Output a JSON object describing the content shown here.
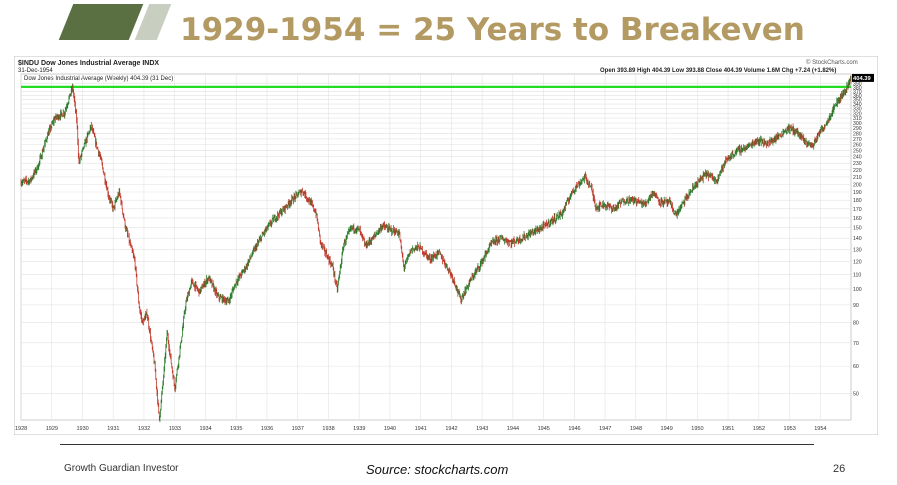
{
  "slide": {
    "title": "1929-1954 = 25 Years to Breakeven",
    "footer_left": "Growth Guardian Investor",
    "source": "Source: stockcharts.com",
    "page_number": "26"
  },
  "chart_header": {
    "symbol_line": "$INDU Dow Jones Industrial Average INDX",
    "date": "31-Dec-1954",
    "ohlc": "Open 393.89  High 404.39  Low 393.88  Close 404.39  Volume 1.6M  Chg +7.24 (+1.82%)",
    "watermark": "© StockCharts.com",
    "legend": "Dow Jones Industrial Average (Weekly) 404.39 (31 Dec)",
    "last_value_label": "404.39"
  },
  "colors": {
    "up_bar": "#2a7a2a",
    "down_bar": "#c0392b",
    "breakeven_line": "#22dd22",
    "grid": "#e2e2e2"
  },
  "chart_data": {
    "type": "line",
    "title": "Dow Jones Industrial Average (Weekly)",
    "x_ticks": [
      "1928",
      "1929",
      "1930",
      "1931",
      "1932",
      "1933",
      "1934",
      "1935",
      "1936",
      "1937",
      "1938",
      "1939",
      "1940",
      "1941",
      "1942",
      "1943",
      "1944",
      "1945",
      "1946",
      "1947",
      "1948",
      "1949",
      "1950",
      "1951",
      "1952",
      "1953",
      "1954"
    ],
    "xlim": [
      1928.0,
      1955.0
    ],
    "y_scale": "log",
    "ylim": [
      42,
      415
    ],
    "y_ticks": [
      50,
      60,
      70,
      80,
      90,
      100,
      110,
      120,
      130,
      140,
      150,
      160,
      170,
      180,
      190,
      200,
      210,
      220,
      230,
      240,
      250,
      260,
      270,
      280,
      290,
      300,
      310,
      320,
      330,
      340,
      350,
      360,
      370,
      380,
      390
    ],
    "breakeven_level": 381,
    "series": [
      {
        "values_xy": [
          [
            1928.0,
            203
          ],
          [
            1928.3,
            205
          ],
          [
            1928.55,
            225
          ],
          [
            1928.85,
            275
          ],
          [
            1929.1,
            310
          ],
          [
            1929.4,
            320
          ],
          [
            1929.68,
            381
          ],
          [
            1929.82,
            300
          ],
          [
            1929.88,
            230
          ],
          [
            1930.0,
            250
          ],
          [
            1930.28,
            294
          ],
          [
            1930.45,
            260
          ],
          [
            1930.6,
            235
          ],
          [
            1930.85,
            185
          ],
          [
            1931.0,
            170
          ],
          [
            1931.2,
            190
          ],
          [
            1931.4,
            150
          ],
          [
            1931.7,
            120
          ],
          [
            1931.85,
            88
          ],
          [
            1931.95,
            80
          ],
          [
            1932.1,
            85
          ],
          [
            1932.35,
            60
          ],
          [
            1932.5,
            42
          ],
          [
            1932.65,
            58
          ],
          [
            1932.75,
            75
          ],
          [
            1932.9,
            60
          ],
          [
            1933.0,
            52
          ],
          [
            1933.2,
            70
          ],
          [
            1933.35,
            90
          ],
          [
            1933.55,
            105
          ],
          [
            1933.8,
            98
          ],
          [
            1934.1,
            108
          ],
          [
            1934.4,
            95
          ],
          [
            1934.75,
            92
          ],
          [
            1935.0,
            105
          ],
          [
            1935.3,
            115
          ],
          [
            1935.6,
            130
          ],
          [
            1935.9,
            145
          ],
          [
            1936.2,
            158
          ],
          [
            1936.5,
            168
          ],
          [
            1936.8,
            180
          ],
          [
            1937.15,
            192
          ],
          [
            1937.45,
            175
          ],
          [
            1937.6,
            165
          ],
          [
            1937.75,
            135
          ],
          [
            1937.95,
            125
          ],
          [
            1938.15,
            115
          ],
          [
            1938.28,
            99
          ],
          [
            1938.5,
            135
          ],
          [
            1938.75,
            150
          ],
          [
            1939.0,
            148
          ],
          [
            1939.2,
            133
          ],
          [
            1939.45,
            140
          ],
          [
            1939.75,
            152
          ],
          [
            1940.0,
            148
          ],
          [
            1940.3,
            145
          ],
          [
            1940.45,
            115
          ],
          [
            1940.7,
            130
          ],
          [
            1940.95,
            132
          ],
          [
            1941.3,
            122
          ],
          [
            1941.6,
            127
          ],
          [
            1941.95,
            112
          ],
          [
            1942.1,
            105
          ],
          [
            1942.3,
            93
          ],
          [
            1942.6,
            105
          ],
          [
            1942.95,
            118
          ],
          [
            1943.3,
            135
          ],
          [
            1943.6,
            140
          ],
          [
            1943.95,
            136
          ],
          [
            1944.3,
            140
          ],
          [
            1944.6,
            145
          ],
          [
            1944.95,
            150
          ],
          [
            1945.3,
            158
          ],
          [
            1945.6,
            165
          ],
          [
            1945.95,
            192
          ],
          [
            1946.35,
            210
          ],
          [
            1946.55,
            195
          ],
          [
            1946.7,
            172
          ],
          [
            1946.95,
            175
          ],
          [
            1947.3,
            170
          ],
          [
            1947.6,
            180
          ],
          [
            1947.95,
            180
          ],
          [
            1948.3,
            175
          ],
          [
            1948.55,
            190
          ],
          [
            1948.8,
            178
          ],
          [
            1949.1,
            177
          ],
          [
            1949.3,
            163
          ],
          [
            1949.6,
            180
          ],
          [
            1949.95,
            200
          ],
          [
            1950.3,
            215
          ],
          [
            1950.6,
            205
          ],
          [
            1950.95,
            235
          ],
          [
            1951.3,
            250
          ],
          [
            1951.6,
            255
          ],
          [
            1951.95,
            268
          ],
          [
            1952.3,
            262
          ],
          [
            1952.65,
            275
          ],
          [
            1952.95,
            290
          ],
          [
            1953.2,
            285
          ],
          [
            1953.5,
            265
          ],
          [
            1953.75,
            258
          ],
          [
            1953.95,
            280
          ],
          [
            1954.2,
            300
          ],
          [
            1954.5,
            340
          ],
          [
            1954.8,
            370
          ],
          [
            1955.0,
            404.39
          ]
        ]
      }
    ]
  }
}
